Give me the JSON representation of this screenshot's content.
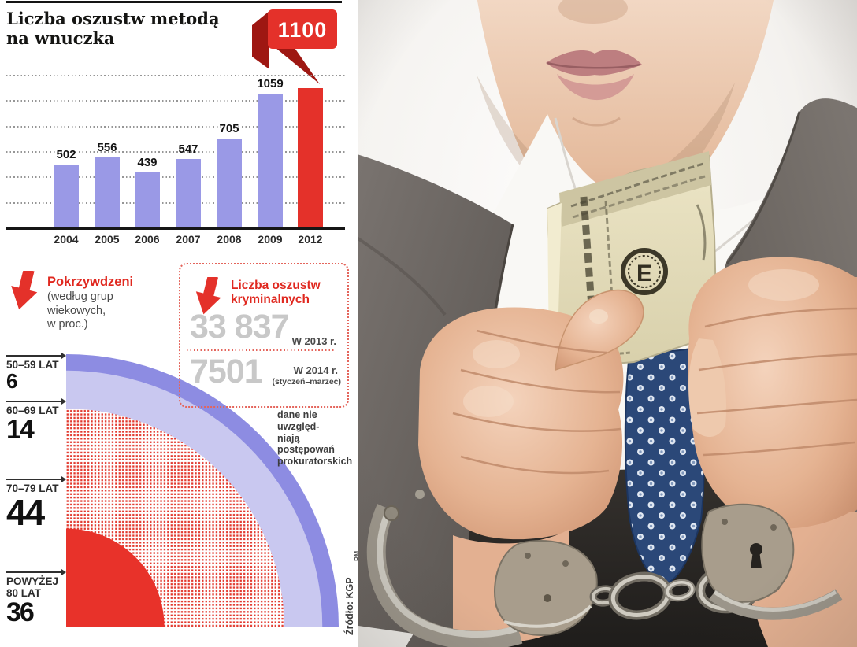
{
  "panel": {
    "title": "Liczba oszustw metodą\nna wnuczka",
    "credit": "RM",
    "source": "Źródło: KGP"
  },
  "bar_chart": {
    "callout_value": "1100",
    "years": [
      "2004",
      "2005",
      "2006",
      "2007",
      "2008",
      "2009",
      "2012"
    ],
    "values": [
      502,
      556,
      439,
      547,
      705,
      1059,
      1100
    ],
    "highlight_index": 6,
    "axis_max": 1200,
    "gridline_step": 200
  },
  "victims": {
    "title": "Pokrzywdzeni",
    "subtitle": "(według grup\nwiekowych,\nw proc.)",
    "groups": [
      {
        "label": "50–59 LAT",
        "value": 6
      },
      {
        "label": "60–69 LAT",
        "value": 14
      },
      {
        "label": "70–79 LAT",
        "value": 44
      },
      {
        "label": "POWYŻEJ\n80 LAT",
        "value": 36
      }
    ]
  },
  "fraud_box": {
    "title": "Liczba oszustw\nkryminalnych",
    "stat_2013": {
      "value": "33 837",
      "label": "W 2013 r."
    },
    "stat_2014": {
      "value": "7501",
      "label": "W 2014 r.",
      "sublabel": "(styczeń–marzec)"
    },
    "disclaimer": "dane nie uwzględ-\nniają postępowań\nprokuratorskich"
  },
  "colors": {
    "accent_red": "#e4312a",
    "dark_red": "#9e1712",
    "bar_purple": "#9a99e6",
    "ring_50_59": "#8d8ce2",
    "ring_60_69": "#c9c8f0",
    "ring_70_79": "red-dot-pattern",
    "ring_80_plus": "#e8322a",
    "gray_number": "#c8c8c8",
    "text_gray": "#4a4a4a"
  },
  "chart_data": [
    {
      "type": "bar",
      "title": "Liczba oszustw metodą na wnuczka",
      "categories": [
        "2004",
        "2005",
        "2006",
        "2007",
        "2008",
        "2009",
        "2012"
      ],
      "values": [
        502,
        556,
        439,
        547,
        705,
        1059,
        1100
      ],
      "bar_color": "#9a99e6",
      "highlight": {
        "category": "2012",
        "value": 1100,
        "color": "#e4312a",
        "callout": "1100"
      },
      "xlabel": "",
      "ylabel": "",
      "ylim": [
        0,
        1200
      ],
      "grid": "horizontal dotted lines every 200, no tick labels",
      "legend": "none"
    },
    {
      "type": "pie",
      "variant": "concentric quarter-circle, radius proportional to cumulative share",
      "title": "Pokrzywdzeni (według grup wiekowych, w proc.)",
      "categories": [
        "50–59 lat",
        "60–69 lat",
        "70–79 lat",
        "powyżej 80 lat"
      ],
      "values": [
        6,
        14,
        44,
        36
      ],
      "unit": "%",
      "colors": [
        "#8d8ce2",
        "#c9c8f0",
        "red-dot-pattern",
        "#e8322a"
      ],
      "legend": "labels with arrows on left side"
    },
    {
      "type": "table",
      "title": "Liczba oszustw kryminalnych",
      "rows": [
        {
          "period": "w 2013 r.",
          "value": 33837
        },
        {
          "period": "w 2014 r. (styczeń–marzec)",
          "value": 7501
        }
      ],
      "note": "dane nie uwzględniają postępowań prokuratorskich"
    }
  ]
}
